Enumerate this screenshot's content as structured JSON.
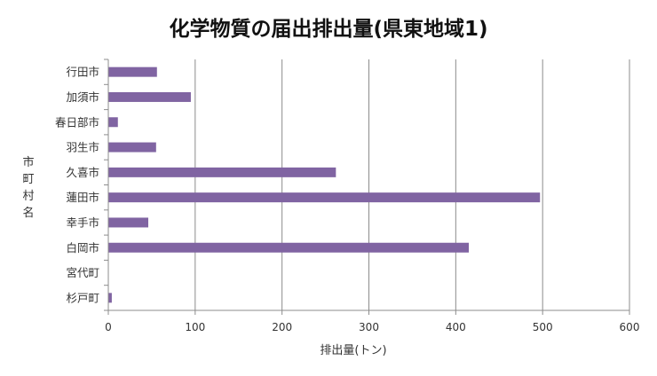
{
  "chart_data": {
    "type": "bar",
    "orientation": "horizontal",
    "title": "化学物質の届出排出量(県東地域1)",
    "xlabel": "排出量(トン)",
    "ylabel": "市町村名",
    "categories": [
      "行田市",
      "加須市",
      "春日部市",
      "羽生市",
      "久喜市",
      "蓮田市",
      "幸手市",
      "白岡市",
      "宮代町",
      "杉戸町"
    ],
    "values": [
      56,
      95,
      11,
      55,
      262,
      497,
      46,
      415,
      0,
      4
    ],
    "xlim": [
      0,
      600
    ],
    "xticks": [
      "0",
      "100",
      "200",
      "300",
      "400",
      "500",
      "600"
    ],
    "grid": true,
    "legend": false,
    "bar_color": "#8064a2"
  }
}
